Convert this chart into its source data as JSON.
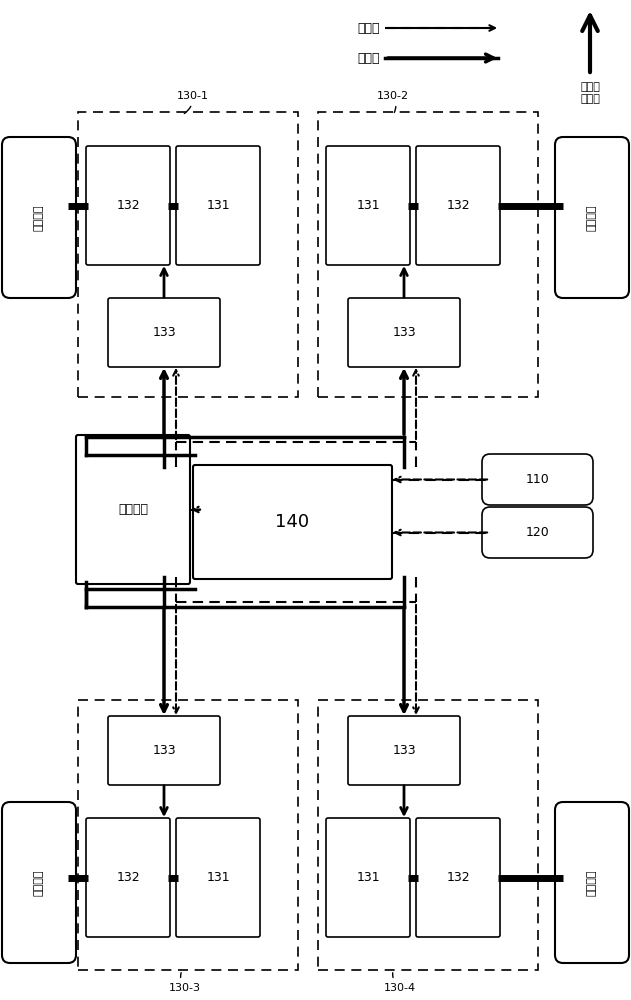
{
  "bg_color": "#ffffff",
  "legend_signal": "信号线",
  "legend_current": "电流线",
  "legend_direction": "汽车行\n驶方向",
  "label_left_front": "左前车轮",
  "label_right_front": "右前车轮",
  "label_left_rear": "左后车轮",
  "label_right_rear": "右后车轮",
  "label_battery": "动力电池",
  "label_140": "140",
  "label_110": "110",
  "label_120": "120",
  "label_130_1": "130-1",
  "label_130_2": "130-2",
  "label_130_3": "130-3",
  "label_130_4": "130-4",
  "label_131": "131",
  "label_132": "132",
  "label_133": "133"
}
